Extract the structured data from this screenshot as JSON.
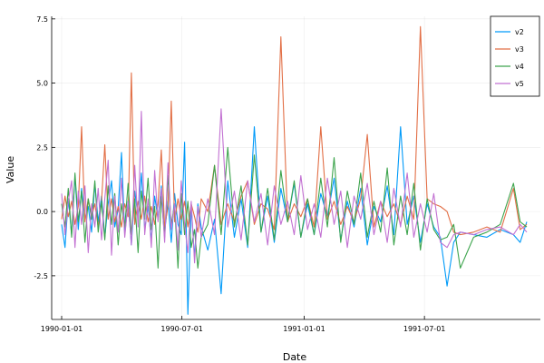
{
  "chart_data": {
    "type": "line",
    "xlabel": "Date",
    "ylabel": "Value",
    "x_range": [
      "1990-01-01",
      "1991-12-02"
    ],
    "ylim": [
      -4.2,
      7.6
    ],
    "xticks": [
      "1990-01-01",
      "1990-07-01",
      "1991-01-01",
      "1991-07-01"
    ],
    "yticks": [
      -2.5,
      0.0,
      2.5,
      5.0,
      7.5
    ],
    "ytick_labels": [
      "-2.5",
      "0.0",
      "2.5",
      "5.0",
      "7.5"
    ],
    "grid": true,
    "legend_position": "top-right",
    "series": [
      {
        "name": "v2",
        "color": "#009af9",
        "x": [
          "1990-01-01",
          "1990-01-06",
          "1990-01-11",
          "1990-01-16",
          "1990-01-21",
          "1990-01-26",
          "1990-01-31",
          "1990-02-05",
          "1990-02-10",
          "1990-02-15",
          "1990-02-20",
          "1990-02-25",
          "1990-03-02",
          "1990-03-07",
          "1990-03-12",
          "1990-03-17",
          "1990-03-22",
          "1990-03-27",
          "1990-04-01",
          "1990-04-06",
          "1990-04-11",
          "1990-04-16",
          "1990-04-21",
          "1990-04-26",
          "1990-05-01",
          "1990-05-06",
          "1990-05-11",
          "1990-05-16",
          "1990-05-21",
          "1990-05-26",
          "1990-05-31",
          "1990-06-05",
          "1990-06-10",
          "1990-06-15",
          "1990-06-20",
          "1990-06-25",
          "1990-06-30",
          "1990-07-05",
          "1990-07-10",
          "1990-07-15",
          "1990-07-20",
          "1990-07-25",
          "1990-07-30",
          "1990-08-09",
          "1990-08-19",
          "1990-08-29",
          "1990-09-08",
          "1990-09-18",
          "1990-09-28",
          "1990-10-08",
          "1990-10-18",
          "1990-10-28",
          "1990-11-07",
          "1990-11-17",
          "1990-11-27",
          "1990-12-07",
          "1990-12-17",
          "1990-12-27",
          "1991-01-06",
          "1991-01-16",
          "1991-01-26",
          "1991-02-05",
          "1991-02-15",
          "1991-02-25",
          "1991-03-07",
          "1991-03-17",
          "1991-03-27",
          "1991-04-06",
          "1991-04-16",
          "1991-04-26",
          "1991-05-06",
          "1991-05-16",
          "1991-05-26",
          "1991-06-05",
          "1991-06-15",
          "1991-06-25",
          "1991-07-05",
          "1991-07-15",
          "1991-07-25",
          "1991-08-04",
          "1991-08-14",
          "1991-08-24",
          "1991-09-13",
          "1991-10-03",
          "1991-10-23",
          "1991-11-12",
          "1991-11-22",
          "1991-12-02"
        ],
        "values": [
          -0.5,
          -1.4,
          0.5,
          -0.9,
          1.4,
          -0.7,
          0.9,
          -0.3,
          0.2,
          -0.8,
          1.1,
          -0.4,
          0.6,
          -1.0,
          0.3,
          1.2,
          -0.6,
          0.1,
          2.3,
          -0.9,
          0.4,
          -1.3,
          0.8,
          -0.2,
          1.5,
          -0.7,
          0.2,
          -1.1,
          0.6,
          -0.3,
          1.0,
          -0.8,
          0.4,
          -1.2,
          0.7,
          -0.5,
          -0.9,
          2.7,
          -4.0,
          0.2,
          -1.8,
          0.3,
          -0.6,
          -1.5,
          -0.3,
          -3.2,
          1.2,
          -1.0,
          0.5,
          -1.4,
          3.3,
          -0.8,
          0.6,
          -1.2,
          0.9,
          -0.4,
          1.1,
          -1.0,
          0.3,
          -0.9,
          0.7,
          -0.2,
          1.3,
          -1.1,
          0.4,
          -0.6,
          0.9,
          -1.3,
          0.2,
          -0.4,
          1.0,
          -0.9,
          3.3,
          -0.5,
          0.6,
          -1.2,
          0.3,
          -0.6,
          -1.0,
          -2.9,
          -1.2,
          -0.8,
          -0.9,
          -1.0,
          -0.7,
          -0.9,
          -1.2,
          -0.4
        ]
      },
      {
        "name": "v3",
        "color": "#e26f46",
        "x": [
          "1990-01-01",
          "1990-01-06",
          "1990-01-11",
          "1990-01-16",
          "1990-01-21",
          "1990-01-26",
          "1990-01-31",
          "1990-02-05",
          "1990-02-10",
          "1990-02-15",
          "1990-02-20",
          "1990-02-25",
          "1990-03-02",
          "1990-03-07",
          "1990-03-12",
          "1990-03-17",
          "1990-03-22",
          "1990-03-27",
          "1990-04-01",
          "1990-04-06",
          "1990-04-11",
          "1990-04-16",
          "1990-04-21",
          "1990-04-26",
          "1990-05-01",
          "1990-05-06",
          "1990-05-11",
          "1990-05-16",
          "1990-05-21",
          "1990-05-26",
          "1990-05-31",
          "1990-06-05",
          "1990-06-10",
          "1990-06-15",
          "1990-06-20",
          "1990-06-25",
          "1990-06-30",
          "1990-07-05",
          "1990-07-10",
          "1990-07-15",
          "1990-07-20",
          "1990-07-25",
          "1990-07-30",
          "1990-08-09",
          "1990-08-19",
          "1990-08-29",
          "1990-09-08",
          "1990-09-18",
          "1990-09-28",
          "1990-10-08",
          "1990-10-18",
          "1990-10-28",
          "1990-11-07",
          "1990-11-17",
          "1990-11-27",
          "1990-12-07",
          "1990-12-17",
          "1990-12-27",
          "1991-01-06",
          "1991-01-16",
          "1991-01-26",
          "1991-02-05",
          "1991-02-15",
          "1991-02-25",
          "1991-03-07",
          "1991-03-17",
          "1991-03-27",
          "1991-04-06",
          "1991-04-16",
          "1991-04-26",
          "1991-05-06",
          "1991-05-16",
          "1991-05-26",
          "1991-06-05",
          "1991-06-15",
          "1991-06-25",
          "1991-07-05",
          "1991-07-15",
          "1991-07-25",
          "1991-08-04",
          "1991-08-14",
          "1991-08-24",
          "1991-09-13",
          "1991-10-03",
          "1991-10-23",
          "1991-11-12",
          "1991-11-22",
          "1991-12-02"
        ],
        "values": [
          -0.3,
          0.6,
          -0.2,
          0.4,
          -0.5,
          0.2,
          3.3,
          -0.4,
          0.5,
          -0.2,
          0.3,
          -0.6,
          0.4,
          2.6,
          -0.3,
          0.5,
          -0.4,
          0.2,
          -0.6,
          0.3,
          -0.2,
          5.4,
          -0.5,
          0.4,
          -0.3,
          0.6,
          -0.4,
          0.2,
          -0.5,
          0.3,
          2.4,
          -0.6,
          0.2,
          4.3,
          -0.4,
          0.5,
          -0.3,
          0.4,
          -0.6,
          0.3,
          -0.2,
          -0.8,
          0.5,
          0.0,
          1.8,
          -0.5,
          0.3,
          -0.4,
          0.6,
          1.2,
          -0.5,
          0.3,
          0.1,
          -0.7,
          6.8,
          -0.4,
          0.3,
          -0.2,
          0.5,
          -0.6,
          3.3,
          -0.3,
          0.4,
          -0.5,
          0.2,
          -0.4,
          0.5,
          3.0,
          -0.6,
          0.4,
          -0.2,
          0.3,
          -0.5,
          0.6,
          -0.3,
          7.2,
          0.5,
          0.3,
          0.2,
          0.0,
          -0.8,
          -0.9,
          -0.8,
          -0.6,
          -0.8,
          0.9,
          -0.7,
          -0.5
        ]
      },
      {
        "name": "v4",
        "color": "#3da44d",
        "x": [
          "1990-01-01",
          "1990-01-06",
          "1990-01-11",
          "1990-01-16",
          "1990-01-21",
          "1990-01-26",
          "1990-01-31",
          "1990-02-05",
          "1990-02-10",
          "1990-02-15",
          "1990-02-20",
          "1990-02-25",
          "1990-03-02",
          "1990-03-07",
          "1990-03-12",
          "1990-03-17",
          "1990-03-22",
          "1990-03-27",
          "1990-04-01",
          "1990-04-06",
          "1990-04-11",
          "1990-04-16",
          "1990-04-21",
          "1990-04-26",
          "1990-05-01",
          "1990-05-06",
          "1990-05-11",
          "1990-05-16",
          "1990-05-21",
          "1990-05-26",
          "1990-05-31",
          "1990-06-05",
          "1990-06-10",
          "1990-06-15",
          "1990-06-20",
          "1990-06-25",
          "1990-06-30",
          "1990-07-05",
          "1990-07-10",
          "1990-07-15",
          "1990-07-20",
          "1990-07-25",
          "1990-07-30",
          "1990-08-09",
          "1990-08-19",
          "1990-08-29",
          "1990-09-08",
          "1990-09-18",
          "1990-09-28",
          "1990-10-08",
          "1990-10-18",
          "1990-10-28",
          "1990-11-07",
          "1990-11-17",
          "1990-11-27",
          "1990-12-07",
          "1990-12-17",
          "1990-12-27",
          "1991-01-06",
          "1991-01-16",
          "1991-01-26",
          "1991-02-05",
          "1991-02-15",
          "1991-02-25",
          "1991-03-07",
          "1991-03-17",
          "1991-03-27",
          "1991-04-06",
          "1991-04-16",
          "1991-04-26",
          "1991-05-06",
          "1991-05-16",
          "1991-05-26",
          "1991-06-05",
          "1991-06-15",
          "1991-06-25",
          "1991-07-05",
          "1991-07-15",
          "1991-07-25",
          "1991-08-04",
          "1991-08-14",
          "1991-08-24",
          "1991-09-13",
          "1991-10-03",
          "1991-10-23",
          "1991-11-12",
          "1991-11-22",
          "1991-12-02"
        ],
        "values": [
          0.3,
          -0.6,
          0.9,
          -1.0,
          1.5,
          -0.4,
          0.8,
          -1.2,
          0.5,
          -0.3,
          1.2,
          -0.8,
          0.4,
          -1.1,
          1.0,
          -0.5,
          0.7,
          -1.3,
          0.3,
          -0.6,
          1.1,
          -0.9,
          0.5,
          -1.6,
          0.8,
          -0.3,
          1.3,
          -0.7,
          0.2,
          -2.2,
          0.6,
          -1.0,
          1.4,
          -0.5,
          0.3,
          -2.2,
          0.7,
          -0.9,
          0.4,
          -1.4,
          -0.7,
          -2.2,
          -1.0,
          -0.5,
          1.8,
          -0.9,
          2.5,
          -0.6,
          1.0,
          -1.3,
          2.2,
          -0.8,
          0.9,
          -1.1,
          1.6,
          -0.4,
          1.2,
          -1.0,
          0.5,
          -0.9,
          1.3,
          -0.6,
          2.1,
          -1.2,
          0.8,
          -0.5,
          1.5,
          -1.0,
          0.4,
          -0.8,
          1.7,
          -1.3,
          0.6,
          -0.9,
          1.1,
          -1.5,
          0.5,
          -0.7,
          -1.1,
          -1.0,
          -0.5,
          -2.2,
          -1.0,
          -0.8,
          -0.5,
          1.1,
          -0.4,
          -0.6
        ]
      },
      {
        "name": "v5",
        "color": "#c271d2",
        "x": [
          "1990-01-01",
          "1990-01-06",
          "1990-01-11",
          "1990-01-16",
          "1990-01-21",
          "1990-01-26",
          "1990-01-31",
          "1990-02-05",
          "1990-02-10",
          "1990-02-15",
          "1990-02-20",
          "1990-02-25",
          "1990-03-02",
          "1990-03-07",
          "1990-03-12",
          "1990-03-17",
          "1990-03-22",
          "1990-03-27",
          "1990-04-01",
          "1990-04-06",
          "1990-04-11",
          "1990-04-16",
          "1990-04-21",
          "1990-04-26",
          "1990-05-01",
          "1990-05-06",
          "1990-05-11",
          "1990-05-16",
          "1990-05-21",
          "1990-05-26",
          "1990-05-31",
          "1990-06-05",
          "1990-06-10",
          "1990-06-15",
          "1990-06-20",
          "1990-06-25",
          "1990-06-30",
          "1990-07-05",
          "1990-07-10",
          "1990-07-15",
          "1990-07-20",
          "1990-07-25",
          "1990-07-30",
          "1990-08-09",
          "1990-08-19",
          "1990-08-29",
          "1990-09-08",
          "1990-09-18",
          "1990-09-28",
          "1990-10-08",
          "1990-10-18",
          "1990-10-28",
          "1990-11-07",
          "1990-11-17",
          "1990-11-27",
          "1990-12-07",
          "1990-12-17",
          "1990-12-27",
          "1991-01-06",
          "1991-01-16",
          "1991-01-26",
          "1991-02-05",
          "1991-02-15",
          "1991-02-25",
          "1991-03-07",
          "1991-03-17",
          "1991-03-27",
          "1991-04-06",
          "1991-04-16",
          "1991-04-26",
          "1991-05-06",
          "1991-05-16",
          "1991-05-26",
          "1991-06-05",
          "1991-06-15",
          "1991-06-25",
          "1991-07-05",
          "1991-07-15",
          "1991-07-25",
          "1991-08-04",
          "1991-08-14",
          "1991-08-24",
          "1991-09-13",
          "1991-10-03",
          "1991-10-23",
          "1991-11-12",
          "1991-11-22",
          "1991-12-02"
        ],
        "values": [
          0.7,
          -0.9,
          0.4,
          1.2,
          -1.4,
          0.8,
          -0.5,
          1.0,
          -1.6,
          0.3,
          -0.6,
          0.9,
          -1.1,
          0.5,
          2.0,
          -1.7,
          0.6,
          -0.8,
          1.3,
          -1.0,
          0.4,
          -1.3,
          1.8,
          -0.6,
          3.9,
          -0.9,
          0.5,
          -1.4,
          1.6,
          -0.4,
          0.9,
          -1.2,
          1.9,
          -0.7,
          0.3,
          -1.5,
          1.2,
          -0.5,
          -1.6,
          0.4,
          -2.0,
          0.2,
          -1.0,
          0.5,
          -0.9,
          4.0,
          -0.6,
          0.8,
          -1.1,
          1.2,
          -0.4,
          0.7,
          -1.3,
          1.0,
          -0.5,
          0.4,
          -0.9,
          1.4,
          -0.7,
          0.3,
          -1.0,
          1.3,
          -0.5,
          0.8,
          -1.4,
          0.6,
          -0.3,
          1.1,
          -0.9,
          0.4,
          -1.2,
          0.9,
          -0.6,
          1.5,
          -1.0,
          0.3,
          -0.8,
          0.7,
          -1.2,
          -1.4,
          -0.9,
          -0.8,
          -0.9,
          -0.7,
          -0.6,
          -0.9,
          -0.5,
          -0.8
        ]
      }
    ]
  }
}
